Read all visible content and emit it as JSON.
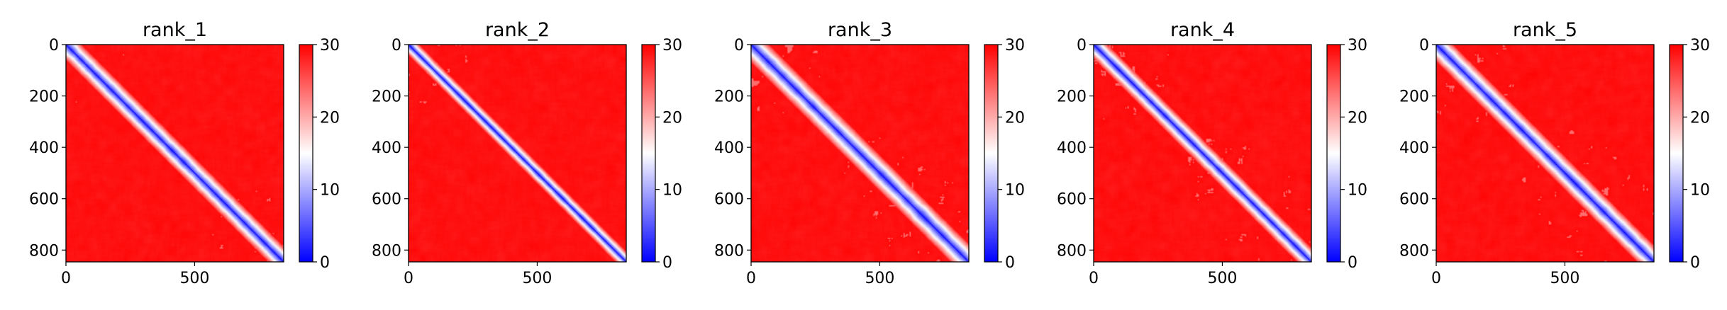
{
  "figure": {
    "colormap": {
      "name": "bwr",
      "low": "#0000ff",
      "mid": "#ffffff",
      "high": "#ff0000"
    }
  },
  "chart_data": [
    {
      "type": "heatmap",
      "title": "rank_1",
      "x_range": [
        0,
        846
      ],
      "y_range": [
        0,
        846
      ],
      "y_inverted": true,
      "xticks": [
        0,
        500
      ],
      "yticks": [
        0,
        200,
        400,
        600,
        800
      ],
      "colorbar": {
        "vmin": 0,
        "vmax": 30,
        "ticks": [
          0,
          10,
          20,
          30
        ]
      },
      "description": "pairwise distance map: low (blue) values along diagonal, high (red) elsewhere",
      "near_diagonal_band": 60,
      "white_blocks": [
        [
          0,
          290
        ],
        [
          560,
          846
        ]
      ],
      "seed": 11
    },
    {
      "type": "heatmap",
      "title": "rank_2",
      "x_range": [
        0,
        846
      ],
      "y_range": [
        0,
        846
      ],
      "y_inverted": true,
      "xticks": [
        0,
        500
      ],
      "yticks": [
        0,
        200,
        400,
        600,
        800
      ],
      "colorbar": {
        "vmin": 0,
        "vmax": 30,
        "ticks": [
          0,
          10,
          20,
          30
        ]
      },
      "description": "pairwise distance map: low (blue) values along diagonal, high (red) elsewhere",
      "near_diagonal_band": 40,
      "white_blocks": [
        [
          0,
          290
        ]
      ],
      "seed": 23
    },
    {
      "type": "heatmap",
      "title": "rank_3",
      "x_range": [
        0,
        846
      ],
      "y_range": [
        0,
        846
      ],
      "y_inverted": true,
      "xticks": [
        0,
        500
      ],
      "yticks": [
        0,
        200,
        400,
        600,
        800
      ],
      "colorbar": {
        "vmin": 0,
        "vmax": 30,
        "ticks": [
          0,
          10,
          20,
          30
        ]
      },
      "description": "pairwise distance map: low (blue) values along diagonal, high (red) elsewhere",
      "near_diagonal_band": 70,
      "white_blocks": [
        [
          0,
          280
        ],
        [
          300,
          846
        ]
      ],
      "seed": 37
    },
    {
      "type": "heatmap",
      "title": "rank_4",
      "x_range": [
        0,
        846
      ],
      "y_range": [
        0,
        846
      ],
      "y_inverted": true,
      "xticks": [
        0,
        500
      ],
      "yticks": [
        0,
        200,
        400,
        600,
        800
      ],
      "colorbar": {
        "vmin": 0,
        "vmax": 30,
        "ticks": [
          0,
          10,
          20,
          30
        ]
      },
      "description": "pairwise distance map: low (blue) values along diagonal, high (red) elsewhere",
      "near_diagonal_band": 55,
      "white_blocks": [
        [
          0,
          290
        ],
        [
          350,
          846
        ]
      ],
      "seed": 51
    },
    {
      "type": "heatmap",
      "title": "rank_5",
      "x_range": [
        0,
        846
      ],
      "y_range": [
        0,
        846
      ],
      "y_inverted": true,
      "xticks": [
        0,
        500
      ],
      "yticks": [
        0,
        200,
        400,
        600,
        800
      ],
      "colorbar": {
        "vmin": 0,
        "vmax": 30,
        "ticks": [
          0,
          10,
          20,
          30
        ]
      },
      "description": "pairwise distance map: low (blue) values along diagonal, high (red) elsewhere",
      "near_diagonal_band": 65,
      "white_blocks": [
        [
          0,
          300
        ],
        [
          330,
          846
        ]
      ],
      "seed": 67
    }
  ]
}
